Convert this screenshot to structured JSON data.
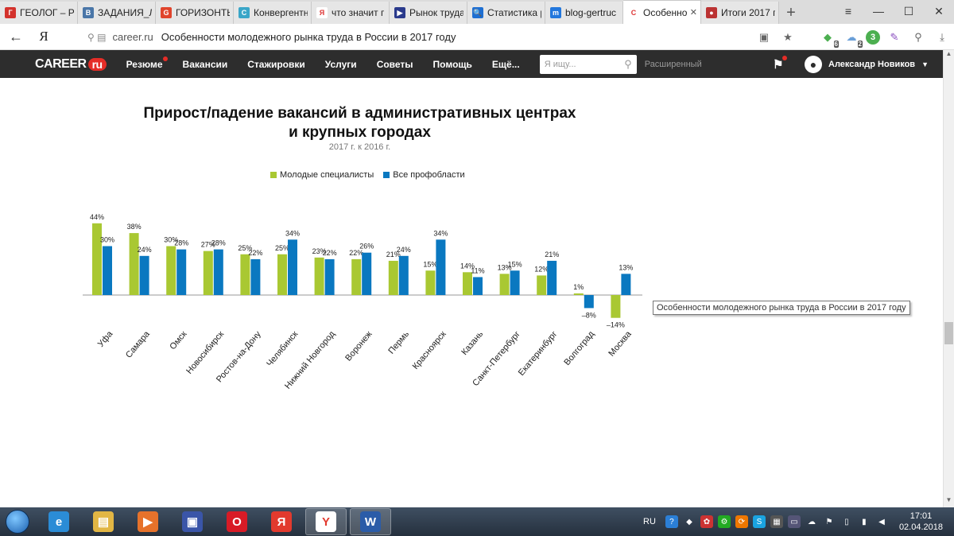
{
  "browser": {
    "tabs": [
      {
        "title": "ГЕОЛОГ – РС",
        "favicon": "vk-geolog-icon",
        "color": "#d3322c",
        "glyph": "Г"
      },
      {
        "title": "ЗАДАНИЯ_Л",
        "favicon": "vk-icon",
        "color": "#4a76a8",
        "glyph": "В"
      },
      {
        "title": "ГОРИЗОНТЬ",
        "favicon": "horizon-icon",
        "color": "#e0442c",
        "glyph": "G"
      },
      {
        "title": "Конвергентн",
        "favicon": "convergent-icon",
        "color": "#3aa6c8",
        "glyph": "C"
      },
      {
        "title": "что значит г",
        "favicon": "yandex-icon",
        "color": "#ffffff",
        "glyph": "Я"
      },
      {
        "title": "Рынок труда",
        "favicon": "market-icon",
        "color": "#2a3a8c",
        "glyph": "▶"
      },
      {
        "title": "Статистика р",
        "favicon": "stats-icon",
        "color": "#1e6fd2",
        "glyph": "🔍"
      },
      {
        "title": "blog-gertruc",
        "favicon": "blog-icon",
        "color": "#2277dd",
        "glyph": "m"
      },
      {
        "title": "Особеннос",
        "favicon": "career-icon",
        "color": "#ffffff",
        "glyph": "С",
        "active": true
      },
      {
        "title": "Итоги 2017 г",
        "favicon": "itogi-icon",
        "color": "#b33",
        "glyph": "●"
      }
    ],
    "new_tab": "+",
    "window_controls": {
      "menu": "≡",
      "minimize": "—",
      "maximize": "☐",
      "close": "✕"
    },
    "back": "←",
    "yandex_button": "Я",
    "url_host": "career.ru",
    "page_title": "Особенности молодежного рынка труда в России в 2017 году",
    "ext_badge_1": "6",
    "ext_badge_2": "2",
    "ext_badge_3": "3"
  },
  "site": {
    "logo_text": "CAREER",
    "logo_ru": "ru",
    "menu": [
      "Резюме",
      "Вакансии",
      "Стажировки",
      "Услуги",
      "Советы",
      "Помощь",
      "Ещё..."
    ],
    "search_placeholder": "Я ищу...",
    "advanced_search": "Расширенный",
    "user_name": "Александр Новиков"
  },
  "chart_data": {
    "type": "bar",
    "title": "Прирост/падение вакансий в административных центрах и крупных городах",
    "title_line1": "Прирост/падение вакансий в административных центрах",
    "title_line2": "и крупных городах",
    "subtitle": "2017 г. к 2016 г.",
    "categories": [
      "Уфа",
      "Самара",
      "Омск",
      "Новосибирск",
      "Ростов-на-Дону",
      "Челябинск",
      "Нижний Новгород",
      "Воронеж",
      "Пермь",
      "Красноярск",
      "Казань",
      "Санкт-Петербург",
      "Екатеринбург",
      "Волгоград",
      "Москва"
    ],
    "series": [
      {
        "name": "Молодые специалисты",
        "color": "#a9c832",
        "values": [
          44,
          38,
          30,
          27,
          25,
          25,
          23,
          22,
          21,
          15,
          14,
          13,
          12,
          1,
          -14
        ],
        "labels": [
          "44%",
          "38%",
          "30%",
          "27%",
          "25%",
          "25%",
          "23%",
          "22%",
          "21%",
          "15%",
          "14%",
          "13%",
          "12%",
          "1%",
          "–14%"
        ]
      },
      {
        "name": "Все профобласти",
        "color": "#0a78c0",
        "values": [
          30,
          24,
          28,
          28,
          22,
          34,
          22,
          26,
          24,
          34,
          11,
          15,
          21,
          -8,
          13
        ],
        "labels": [
          "30%",
          "24%",
          "28%",
          "28%",
          "22%",
          "34%",
          "22%",
          "26%",
          "24%",
          "34%",
          "11%",
          "15%",
          "21%",
          "–8%",
          "13%"
        ]
      }
    ],
    "legend_position": "top",
    "grid": false,
    "tooltip": "Особенности молодежного рынка труда в России в 2017 году"
  },
  "taskbar": {
    "apps": [
      {
        "name": "ie-icon",
        "glyph": "e",
        "color": "#2b8cd6"
      },
      {
        "name": "file-explorer-icon",
        "glyph": "▤",
        "color": "#e2b644"
      },
      {
        "name": "media-player-icon",
        "glyph": "▶",
        "color": "#e6722b"
      },
      {
        "name": "floppy-icon",
        "glyph": "▣",
        "color": "#3a55a8"
      },
      {
        "name": "opera-icon",
        "glyph": "O",
        "color": "#d81b26"
      },
      {
        "name": "yandex-icon",
        "glyph": "Я",
        "color": "#e23a2e"
      },
      {
        "name": "yandex-browser-icon",
        "glyph": "Y",
        "color": "#ffffff"
      },
      {
        "name": "word-icon",
        "glyph": "W",
        "color": "#2b5ca8"
      }
    ],
    "lang": "RU",
    "time": "17:01",
    "date": "02.04.2018"
  }
}
